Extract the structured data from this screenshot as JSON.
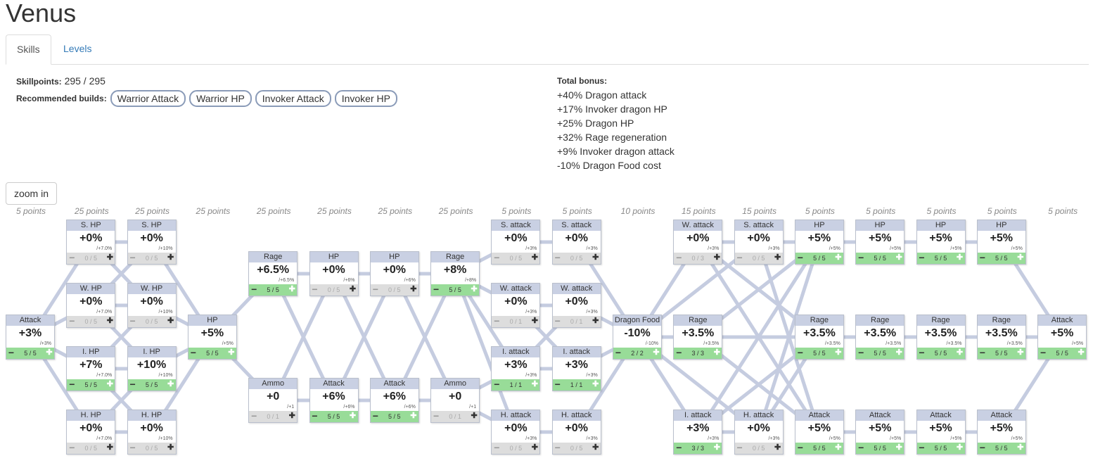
{
  "title": "Venus",
  "tabs": [
    {
      "label": "Skills",
      "active": true
    },
    {
      "label": "Levels",
      "active": false
    }
  ],
  "skillpoints": {
    "label": "Skillpoints:",
    "value": "295 / 295"
  },
  "recommended": {
    "label": "Recommended builds:",
    "builds": [
      "Warrior Attack",
      "Warrior HP",
      "Invoker Attack",
      "Invoker HP"
    ]
  },
  "bonus": {
    "label": "Total bonus:",
    "lines": [
      "+40% Dragon attack",
      "+17% Invoker dragon HP",
      "+25% Dragon HP",
      "+32% Rage regeneration",
      "+9% Invoker dragon attack",
      "-10% Dragon Food cost"
    ]
  },
  "zoom_label": "zoom in",
  "colors": {
    "accent_link": "#337ab7",
    "node_header": "#c9d0e3",
    "on": "#98dc98",
    "off": "#dddddd",
    "edge": "#c5cce0"
  },
  "columns": [
    {
      "cost": "5 points",
      "nodes": [
        {
          "id": "c0-attack",
          "title": "Attack",
          "value": "+3%",
          "max": "/+3%",
          "count": "5 / 5",
          "on": true,
          "row": "mid"
        }
      ]
    },
    {
      "cost": "25 points",
      "nodes": [
        {
          "id": "c1-shp",
          "title": "S. HP",
          "value": "+0%",
          "max": "/+7.0%",
          "count": "0 / 5",
          "on": false,
          "row": "r0"
        },
        {
          "id": "c1-whp",
          "title": "W. HP",
          "value": "+0%",
          "max": "/+7.0%",
          "count": "0 / 5",
          "on": false,
          "row": "r1"
        },
        {
          "id": "c1-ihp",
          "title": "I. HP",
          "value": "+7%",
          "max": "/+7.0%",
          "count": "5 / 5",
          "on": true,
          "row": "r2"
        },
        {
          "id": "c1-hhp",
          "title": "H. HP",
          "value": "+0%",
          "max": "/+7.0%",
          "count": "0 / 5",
          "on": false,
          "row": "r3"
        }
      ]
    },
    {
      "cost": "25 points",
      "nodes": [
        {
          "id": "c2-shp",
          "title": "S. HP",
          "value": "+0%",
          "max": "/+10%",
          "count": "0 / 5",
          "on": false,
          "row": "r0"
        },
        {
          "id": "c2-whp",
          "title": "W. HP",
          "value": "+0%",
          "max": "/+10%",
          "count": "0 / 5",
          "on": false,
          "row": "r1"
        },
        {
          "id": "c2-ihp",
          "title": "I. HP",
          "value": "+10%",
          "max": "/+10%",
          "count": "5 / 5",
          "on": true,
          "row": "r2"
        },
        {
          "id": "c2-hhp",
          "title": "H. HP",
          "value": "+0%",
          "max": "/+10%",
          "count": "0 / 5",
          "on": false,
          "row": "r3"
        }
      ]
    },
    {
      "cost": "25 points",
      "nodes": [
        {
          "id": "c3-hp",
          "title": "HP",
          "value": "+5%",
          "max": "/+5%",
          "count": "5 / 5",
          "on": true,
          "row": "mid"
        }
      ]
    },
    {
      "cost": "25 points",
      "nodes": [
        {
          "id": "c4-rage",
          "title": "Rage",
          "value": "+6.5%",
          "max": "/+6.5%",
          "count": "5 / 5",
          "on": true,
          "row": "u"
        },
        {
          "id": "c4-ammo",
          "title": "Ammo",
          "value": "+0",
          "max": "/+1",
          "count": "0 / 1",
          "on": false,
          "row": "l"
        }
      ]
    },
    {
      "cost": "25 points",
      "nodes": [
        {
          "id": "c5-hp",
          "title": "HP",
          "value": "+0%",
          "max": "/+6%",
          "count": "0 / 5",
          "on": false,
          "row": "u"
        },
        {
          "id": "c5-attack",
          "title": "Attack",
          "value": "+6%",
          "max": "/+6%",
          "count": "5 / 5",
          "on": true,
          "row": "l"
        }
      ]
    },
    {
      "cost": "25 points",
      "nodes": [
        {
          "id": "c6-hp",
          "title": "HP",
          "value": "+0%",
          "max": "/+6%",
          "count": "0 / 5",
          "on": false,
          "row": "u"
        },
        {
          "id": "c6-attack",
          "title": "Attack",
          "value": "+6%",
          "max": "/+6%",
          "count": "5 / 5",
          "on": true,
          "row": "l"
        }
      ]
    },
    {
      "cost": "25 points",
      "nodes": [
        {
          "id": "c7-rage",
          "title": "Rage",
          "value": "+8%",
          "max": "/+8%",
          "count": "5 / 5",
          "on": true,
          "row": "u"
        },
        {
          "id": "c7-ammo",
          "title": "Ammo",
          "value": "+0",
          "max": "/+1",
          "count": "0 / 1",
          "on": false,
          "row": "l"
        }
      ]
    },
    {
      "cost": "5 points",
      "nodes": [
        {
          "id": "c8-sattack",
          "title": "S. attack",
          "value": "+0%",
          "max": "/+3%",
          "count": "0 / 5",
          "on": false,
          "row": "r0"
        },
        {
          "id": "c8-wattack",
          "title": "W. attack",
          "value": "+0%",
          "max": "/+3%",
          "count": "0 / 1",
          "on": false,
          "row": "r1"
        },
        {
          "id": "c8-iattack",
          "title": "I. attack",
          "value": "+3%",
          "max": "/+3%",
          "count": "1 / 1",
          "on": true,
          "row": "r2"
        },
        {
          "id": "c8-hattack",
          "title": "H. attack",
          "value": "+0%",
          "max": "/+3%",
          "count": "0 / 5",
          "on": false,
          "row": "r3"
        }
      ]
    },
    {
      "cost": "5 points",
      "nodes": [
        {
          "id": "c9-sattack",
          "title": "S. attack",
          "value": "+0%",
          "max": "/+3%",
          "count": "0 / 5",
          "on": false,
          "row": "r0"
        },
        {
          "id": "c9-wattack",
          "title": "W. attack",
          "value": "+0%",
          "max": "/+3%",
          "count": "0 / 1",
          "on": false,
          "row": "r1"
        },
        {
          "id": "c9-iattack",
          "title": "I. attack",
          "value": "+3%",
          "max": "/+3%",
          "count": "1 / 1",
          "on": true,
          "row": "r2"
        },
        {
          "id": "c9-hattack",
          "title": "H. attack",
          "value": "+0%",
          "max": "/+3%",
          "count": "0 / 5",
          "on": false,
          "row": "r3"
        }
      ]
    },
    {
      "cost": "10 points",
      "nodes": [
        {
          "id": "c10-food",
          "title": "Dragon Food",
          "value": "-10%",
          "max": "/-10%",
          "count": "2 / 2",
          "on": true,
          "row": "mid"
        }
      ]
    },
    {
      "cost": "15 points",
      "nodes": [
        {
          "id": "c11-wattack",
          "title": "W. attack",
          "value": "+0%",
          "max": "/+3%",
          "count": "0 / 3",
          "on": false,
          "row": "r0"
        },
        {
          "id": "c11-rage",
          "title": "Rage",
          "value": "+3.5%",
          "max": "/+3.5%",
          "count": "3 / 3",
          "on": true,
          "row": "mid"
        },
        {
          "id": "c11-iattack",
          "title": "I. attack",
          "value": "+3%",
          "max": "/+3%",
          "count": "3 / 3",
          "on": true,
          "row": "r3"
        }
      ]
    },
    {
      "cost": "15 points",
      "nodes": [
        {
          "id": "c12-sattack",
          "title": "S. attack",
          "value": "+0%",
          "max": "/+3%",
          "count": "0 / 5",
          "on": false,
          "row": "r0"
        },
        {
          "id": "c12-hattack",
          "title": "H. attack",
          "value": "+0%",
          "max": "/+3%",
          "count": "0 / 5",
          "on": false,
          "row": "r3"
        }
      ]
    },
    {
      "cost": "5 points",
      "nodes": [
        {
          "id": "c13-hp",
          "title": "HP",
          "value": "+5%",
          "max": "/+5%",
          "count": "5 / 5",
          "on": true,
          "row": "r0"
        },
        {
          "id": "c13-rage",
          "title": "Rage",
          "value": "+3.5%",
          "max": "/+3.5%",
          "count": "5 / 5",
          "on": true,
          "row": "mid"
        },
        {
          "id": "c13-attack",
          "title": "Attack",
          "value": "+5%",
          "max": "/+5%",
          "count": "5 / 5",
          "on": true,
          "row": "r3"
        }
      ]
    },
    {
      "cost": "5 points",
      "nodes": [
        {
          "id": "c14-hp",
          "title": "HP",
          "value": "+5%",
          "max": "/+5%",
          "count": "5 / 5",
          "on": true,
          "row": "r0"
        },
        {
          "id": "c14-rage",
          "title": "Rage",
          "value": "+3.5%",
          "max": "/+3.5%",
          "count": "5 / 5",
          "on": true,
          "row": "mid"
        },
        {
          "id": "c14-attack",
          "title": "Attack",
          "value": "+5%",
          "max": "/+5%",
          "count": "5 / 5",
          "on": true,
          "row": "r3"
        }
      ]
    },
    {
      "cost": "5 points",
      "nodes": [
        {
          "id": "c15-hp",
          "title": "HP",
          "value": "+5%",
          "max": "/+5%",
          "count": "5 / 5",
          "on": true,
          "row": "r0"
        },
        {
          "id": "c15-rage",
          "title": "Rage",
          "value": "+3.5%",
          "max": "/+3.5%",
          "count": "5 / 5",
          "on": true,
          "row": "mid"
        },
        {
          "id": "c15-attack",
          "title": "Attack",
          "value": "+5%",
          "max": "/+5%",
          "count": "5 / 5",
          "on": true,
          "row": "r3"
        }
      ]
    },
    {
      "cost": "5 points",
      "nodes": [
        {
          "id": "c16-hp",
          "title": "HP",
          "value": "+5%",
          "max": "/+5%",
          "count": "5 / 5",
          "on": true,
          "row": "r0"
        },
        {
          "id": "c16-rage",
          "title": "Rage",
          "value": "+3.5%",
          "max": "/+3.5%",
          "count": "5 / 5",
          "on": true,
          "row": "mid"
        },
        {
          "id": "c16-attack",
          "title": "Attack",
          "value": "+5%",
          "max": "/+5%",
          "count": "5 / 5",
          "on": true,
          "row": "r3"
        }
      ]
    },
    {
      "cost": "5 points",
      "nodes": [
        {
          "id": "c17-attack",
          "title": "Attack",
          "value": "+5%",
          "max": "/+5%",
          "count": "5 / 5",
          "on": true,
          "row": "mid"
        }
      ]
    }
  ],
  "edges": [
    [
      "c0-attack",
      "c1-shp"
    ],
    [
      "c0-attack",
      "c1-whp"
    ],
    [
      "c0-attack",
      "c1-ihp"
    ],
    [
      "c0-attack",
      "c1-hhp"
    ],
    [
      "c1-shp",
      "c2-shp"
    ],
    [
      "c1-whp",
      "c2-whp"
    ],
    [
      "c1-ihp",
      "c2-ihp"
    ],
    [
      "c1-hhp",
      "c2-hhp"
    ],
    [
      "c1-shp",
      "c2-whp"
    ],
    [
      "c1-whp",
      "c2-shp"
    ],
    [
      "c1-whp",
      "c2-ihp"
    ],
    [
      "c1-ihp",
      "c2-whp"
    ],
    [
      "c1-ihp",
      "c2-hhp"
    ],
    [
      "c1-hhp",
      "c2-ihp"
    ],
    [
      "c2-shp",
      "c3-hp"
    ],
    [
      "c2-whp",
      "c3-hp"
    ],
    [
      "c2-ihp",
      "c3-hp"
    ],
    [
      "c2-hhp",
      "c3-hp"
    ],
    [
      "c3-hp",
      "c4-rage"
    ],
    [
      "c3-hp",
      "c4-ammo"
    ],
    [
      "c4-rage",
      "c5-hp"
    ],
    [
      "c4-rage",
      "c5-attack"
    ],
    [
      "c4-ammo",
      "c5-hp"
    ],
    [
      "c4-ammo",
      "c5-attack"
    ],
    [
      "c5-hp",
      "c6-hp"
    ],
    [
      "c5-hp",
      "c6-attack"
    ],
    [
      "c5-attack",
      "c6-hp"
    ],
    [
      "c5-attack",
      "c6-attack"
    ],
    [
      "c6-hp",
      "c7-rage"
    ],
    [
      "c6-hp",
      "c7-ammo"
    ],
    [
      "c6-attack",
      "c7-rage"
    ],
    [
      "c6-attack",
      "c7-ammo"
    ],
    [
      "c7-rage",
      "c8-sattack"
    ],
    [
      "c7-rage",
      "c8-wattack"
    ],
    [
      "c7-rage",
      "c8-iattack"
    ],
    [
      "c7-rage",
      "c8-hattack"
    ],
    [
      "c7-ammo",
      "c8-iattack"
    ],
    [
      "c7-ammo",
      "c8-hattack"
    ],
    [
      "c8-sattack",
      "c9-sattack"
    ],
    [
      "c8-wattack",
      "c9-wattack"
    ],
    [
      "c8-iattack",
      "c9-iattack"
    ],
    [
      "c8-hattack",
      "c9-hattack"
    ],
    [
      "c8-iattack",
      "c9-wattack"
    ],
    [
      "c8-wattack",
      "c9-iattack"
    ],
    [
      "c9-sattack",
      "c10-food"
    ],
    [
      "c9-wattack",
      "c10-food"
    ],
    [
      "c9-iattack",
      "c10-food"
    ],
    [
      "c9-hattack",
      "c10-food"
    ],
    [
      "c10-food",
      "c11-wattack"
    ],
    [
      "c10-food",
      "c11-rage"
    ],
    [
      "c10-food",
      "c11-iattack"
    ],
    [
      "c10-food",
      "c12-sattack"
    ],
    [
      "c10-food",
      "c12-hattack"
    ],
    [
      "c11-wattack",
      "c12-sattack"
    ],
    [
      "c11-iattack",
      "c12-hattack"
    ],
    [
      "c11-wattack",
      "c13-rage"
    ],
    [
      "c11-wattack",
      "c13-attack"
    ],
    [
      "c11-rage",
      "c13-hp"
    ],
    [
      "c11-rage",
      "c13-rage"
    ],
    [
      "c11-rage",
      "c13-attack"
    ],
    [
      "c11-iattack",
      "c13-hp"
    ],
    [
      "c11-iattack",
      "c13-rage"
    ],
    [
      "c12-sattack",
      "c13-hp"
    ],
    [
      "c12-sattack",
      "c13-attack"
    ],
    [
      "c12-hattack",
      "c13-hp"
    ],
    [
      "c12-hattack",
      "c13-rage"
    ],
    [
      "c13-hp",
      "c14-hp"
    ],
    [
      "c13-rage",
      "c14-rage"
    ],
    [
      "c13-attack",
      "c14-attack"
    ],
    [
      "c14-hp",
      "c15-hp"
    ],
    [
      "c14-rage",
      "c15-rage"
    ],
    [
      "c14-attack",
      "c15-attack"
    ],
    [
      "c15-hp",
      "c16-hp"
    ],
    [
      "c15-rage",
      "c16-rage"
    ],
    [
      "c15-attack",
      "c16-attack"
    ],
    [
      "c16-hp",
      "c17-attack"
    ],
    [
      "c16-rage",
      "c17-attack"
    ],
    [
      "c16-attack",
      "c17-attack"
    ]
  ]
}
